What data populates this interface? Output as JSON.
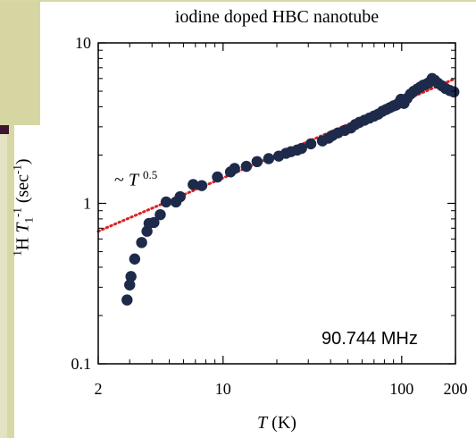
{
  "chart_data": {
    "type": "scatter",
    "title": "iodine doped HBC nanotube",
    "xlabel": {
      "symbol": "T",
      "unit": "(K)"
    },
    "ylabel": {
      "prefix_sup": "1",
      "prefix": "H",
      "symbol": "T",
      "sub": "1",
      "sup": "-1",
      "unit_open": " (sec",
      "unit_sup": "-1",
      "unit_close": ")"
    },
    "x_scale": "log",
    "y_scale": "log",
    "xlim": [
      2,
      200
    ],
    "ylim": [
      0.1,
      10
    ],
    "x_ticks": [
      2,
      10,
      100,
      200
    ],
    "x_tick_labels": [
      "2",
      "10",
      "100",
      "200"
    ],
    "y_ticks": [
      0.1,
      1,
      10
    ],
    "y_tick_labels": [
      "0.1",
      "1",
      "10"
    ],
    "grid": false,
    "marker_color": "#1e2a4a",
    "fit_color": "#e02020",
    "annotations": [
      {
        "text_prefix": "~ ",
        "symbol": "T",
        "exponent": "0.5"
      },
      {
        "text": "90.744 MHz"
      }
    ],
    "fit_line": {
      "style": "dotted",
      "exponent": 0.5,
      "points": [
        [
          2.0,
          0.67
        ],
        [
          200,
          6.0
        ]
      ]
    },
    "series": [
      {
        "marker": "filled-circle",
        "points": [
          [
            2.9,
            0.25
          ],
          [
            3.0,
            0.31
          ],
          [
            3.05,
            0.35
          ],
          [
            3.2,
            0.45
          ],
          [
            3.5,
            0.57
          ],
          [
            3.75,
            0.67
          ],
          [
            3.85,
            0.75
          ],
          [
            4.1,
            0.76
          ],
          [
            4.45,
            0.85
          ],
          [
            4.8,
            1.02
          ],
          [
            5.45,
            1.02
          ],
          [
            5.75,
            1.1
          ],
          [
            6.8,
            1.31
          ],
          [
            7.6,
            1.29
          ],
          [
            9.3,
            1.46
          ],
          [
            11.0,
            1.57
          ],
          [
            11.6,
            1.65
          ],
          [
            13.5,
            1.7
          ],
          [
            15.5,
            1.82
          ],
          [
            18.0,
            1.9
          ],
          [
            20.5,
            1.97
          ],
          [
            22.5,
            2.05
          ],
          [
            24.0,
            2.1
          ],
          [
            26.0,
            2.15
          ],
          [
            27.5,
            2.2
          ],
          [
            31.0,
            2.35
          ],
          [
            36.0,
            2.45
          ],
          [
            39.0,
            2.55
          ],
          [
            41.0,
            2.65
          ],
          [
            44.0,
            2.75
          ],
          [
            48.0,
            2.85
          ],
          [
            52.0,
            2.95
          ],
          [
            55.0,
            3.1
          ],
          [
            58.0,
            3.2
          ],
          [
            62.0,
            3.3
          ],
          [
            66.0,
            3.4
          ],
          [
            70.0,
            3.5
          ],
          [
            74.0,
            3.6
          ],
          [
            78.0,
            3.75
          ],
          [
            82.0,
            3.85
          ],
          [
            86.0,
            3.95
          ],
          [
            90.0,
            4.05
          ],
          [
            93.0,
            4.1
          ],
          [
            96.0,
            4.2
          ],
          [
            99.0,
            4.45
          ],
          [
            103.0,
            4.2
          ],
          [
            107.0,
            4.5
          ],
          [
            112.0,
            4.8
          ],
          [
            117.0,
            5.0
          ],
          [
            122.0,
            5.15
          ],
          [
            127.0,
            5.3
          ],
          [
            132.0,
            5.45
          ],
          [
            138.0,
            5.55
          ],
          [
            142.0,
            5.65
          ],
          [
            148.0,
            6.0
          ],
          [
            153.0,
            5.85
          ],
          [
            160.0,
            5.6
          ],
          [
            168.0,
            5.4
          ],
          [
            176.0,
            5.2
          ],
          [
            186.0,
            5.05
          ],
          [
            196.0,
            4.95
          ]
        ]
      }
    ]
  }
}
